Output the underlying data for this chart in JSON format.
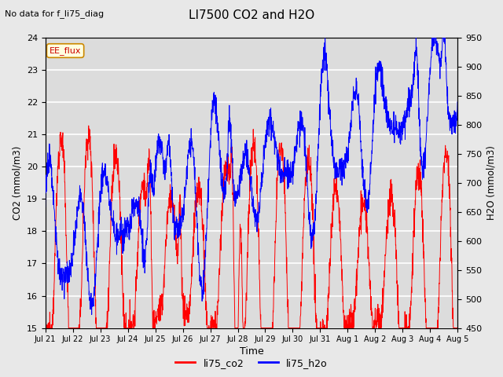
{
  "title": "LI7500 CO2 and H2O",
  "subtitle": "No data for f_li75_diag",
  "xlabel": "Time",
  "ylabel_left": "CO2 (mmol/m3)",
  "ylabel_right": "H2O (mmol/m3)",
  "ylim_left": [
    15.0,
    24.0
  ],
  "ylim_right": [
    450,
    950
  ],
  "yticks_left": [
    15.0,
    16.0,
    17.0,
    18.0,
    19.0,
    20.0,
    21.0,
    22.0,
    23.0,
    24.0
  ],
  "yticks_right": [
    450,
    500,
    550,
    600,
    650,
    700,
    750,
    800,
    850,
    900,
    950
  ],
  "xtick_labels": [
    "Jul 21",
    "Jul 22",
    "Jul 23",
    "Jul 24",
    "Jul 25",
    "Jul 26",
    "Jul 27",
    "Jul 28",
    "Jul 29",
    "Jul 30",
    "Jul 31",
    "Aug 1",
    "Aug 2",
    "Aug 3",
    "Aug 4",
    "Aug 5"
  ],
  "legend_labels": [
    "li75_co2",
    "li75_h2o"
  ],
  "legend_colors": [
    "red",
    "blue"
  ],
  "annotation_text": "EE_flux",
  "bg_color": "#e8e8e8",
  "plot_bg_color": "#dcdcdc",
  "line_co2_color": "red",
  "line_h2o_color": "blue",
  "seed": 12345,
  "n_points": 2000
}
